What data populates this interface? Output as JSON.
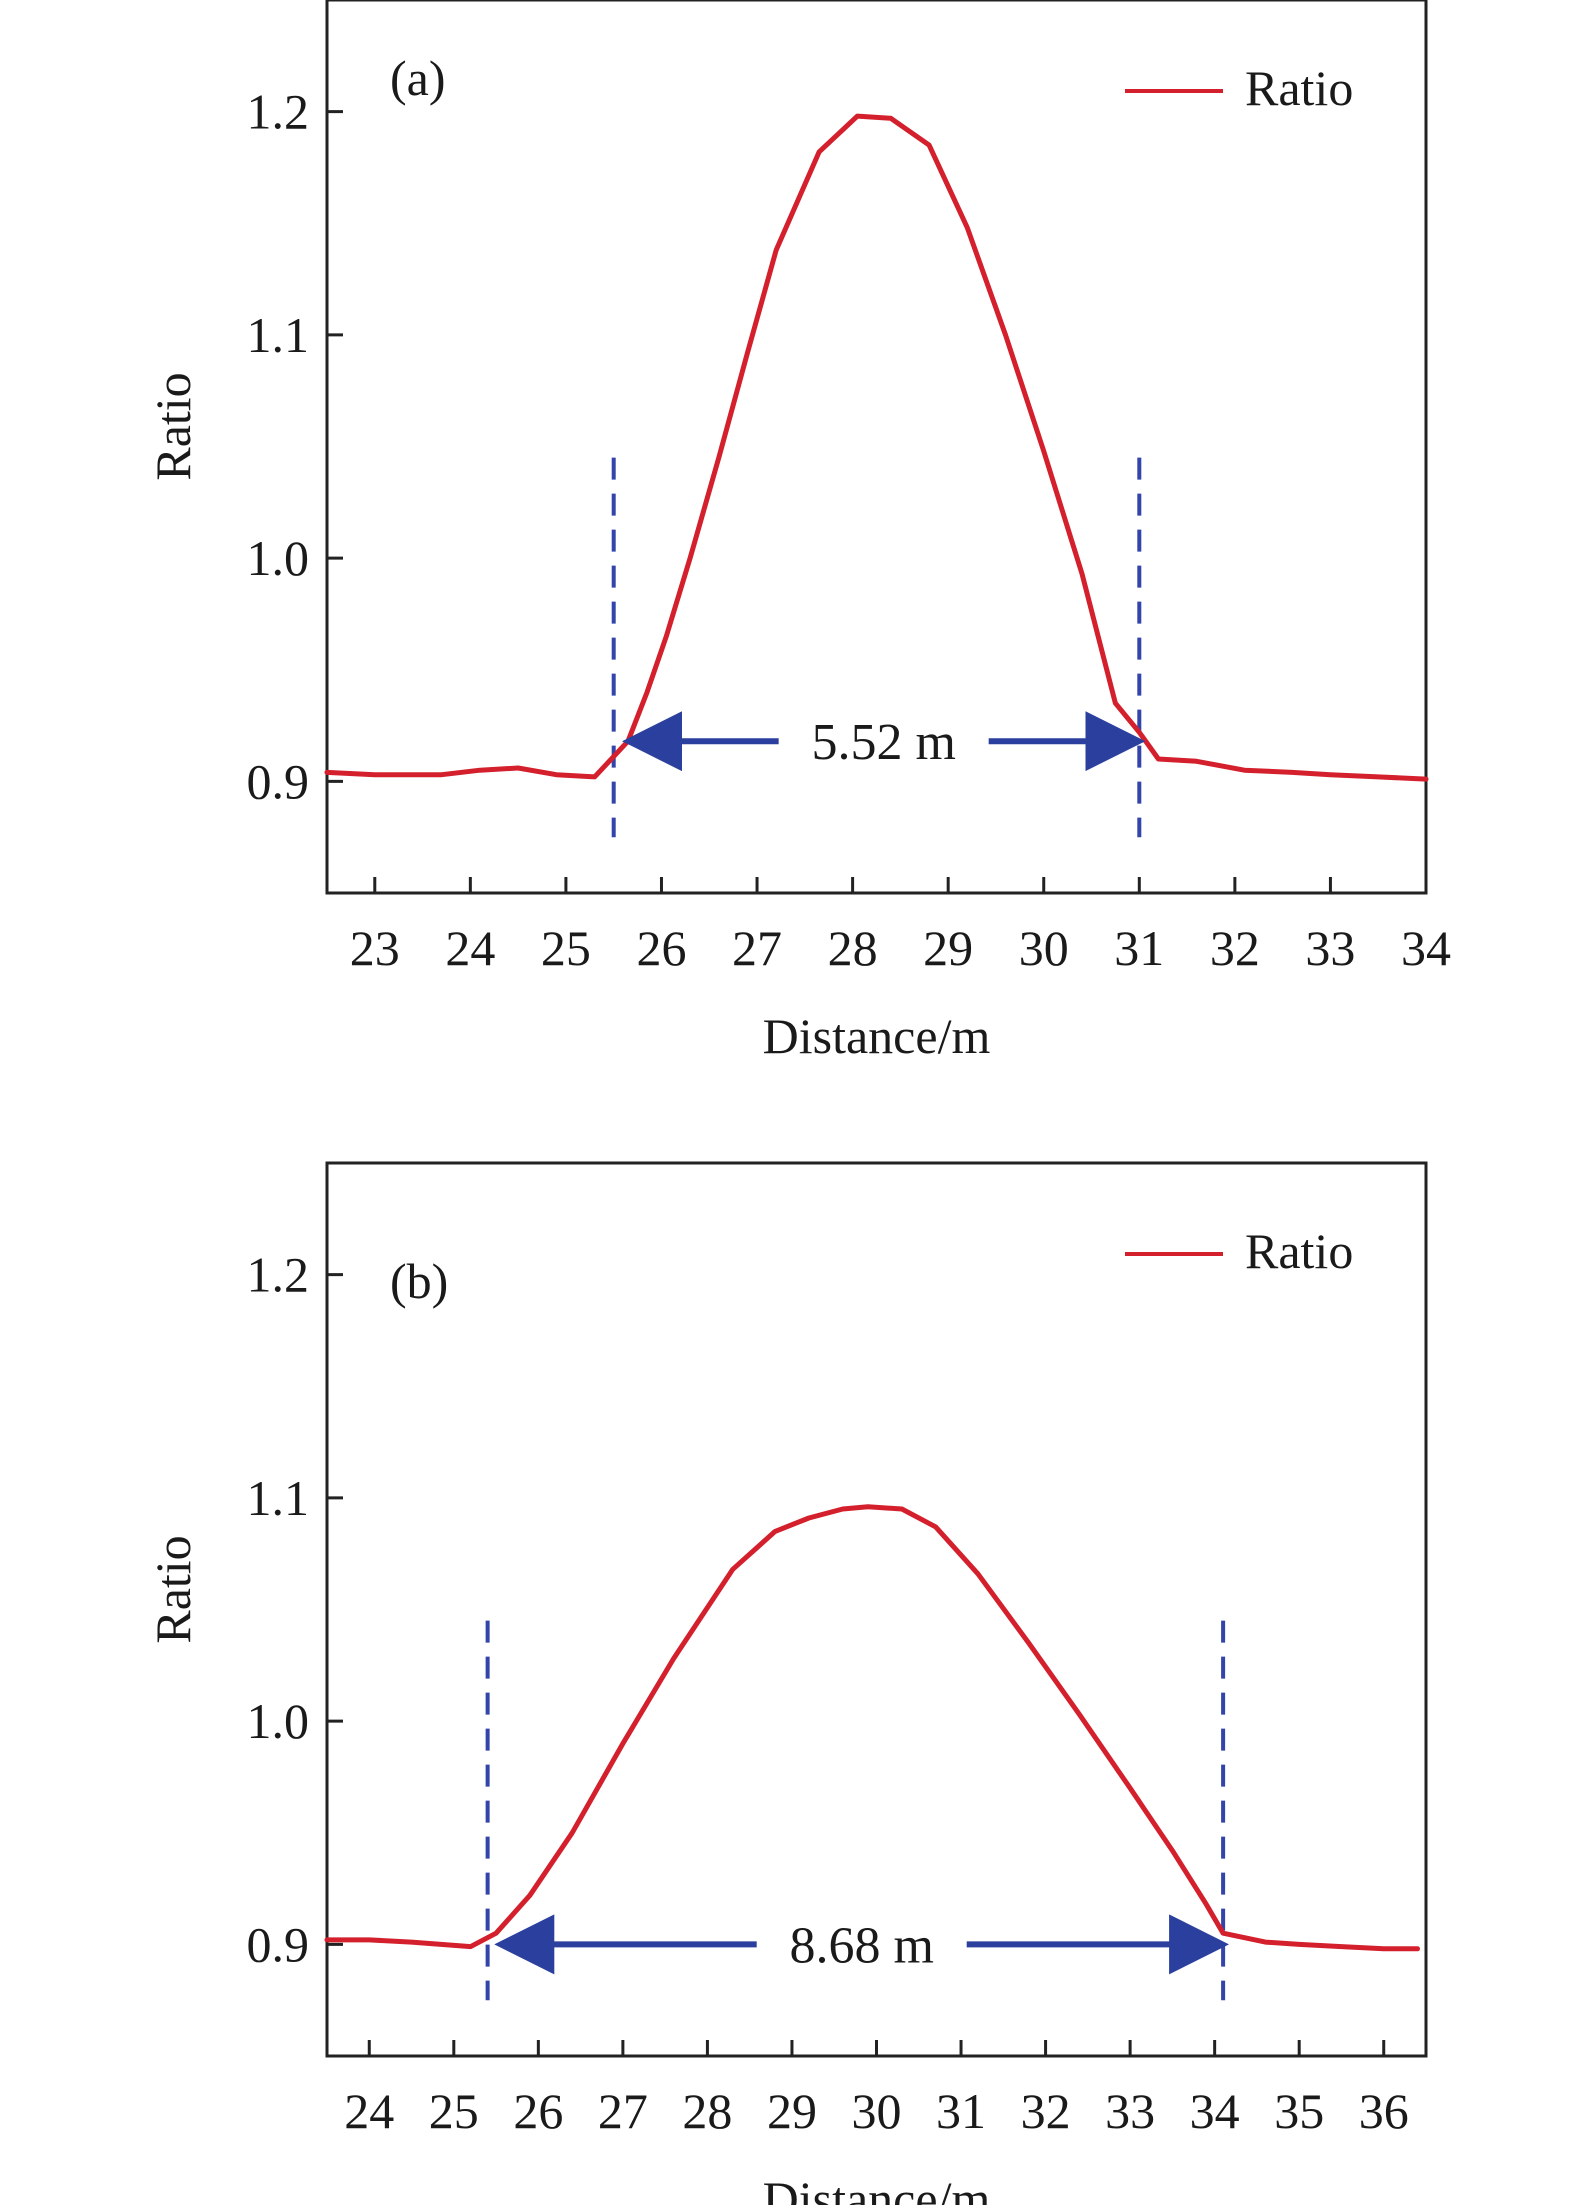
{
  "chart_data": [
    {
      "type": "line",
      "panel_label": "(a)",
      "xlabel": "Distance/m",
      "ylabel": "Ratio",
      "xlim": [
        22.5,
        34
      ],
      "ylim": [
        0.85,
        1.25
      ],
      "xticks": [
        23,
        24,
        25,
        26,
        27,
        28,
        29,
        30,
        31,
        32,
        33,
        34
      ],
      "yticks": [
        0.9,
        1.0,
        1.1,
        1.2
      ],
      "xtick_labels": [
        "23",
        "24",
        "25",
        "26",
        "27",
        "28",
        "29",
        "30",
        "31",
        "32",
        "33",
        "34"
      ],
      "ytick_labels": [
        "0.9",
        "1.0",
        "1.1",
        "1.2"
      ],
      "legend": {
        "label": "Ratio",
        "position": "top-right"
      },
      "series": [
        {
          "name": "Ratio",
          "color": "#d4202c",
          "x": [
            22.5,
            23.0,
            23.7,
            24.1,
            24.5,
            24.9,
            25.3,
            25.65,
            25.85,
            26.05,
            26.3,
            26.6,
            26.9,
            27.2,
            27.65,
            28.05,
            28.4,
            28.8,
            29.2,
            29.6,
            30.0,
            30.4,
            30.75,
            31.0,
            31.2,
            31.6,
            32.1,
            32.6,
            33.0,
            33.5,
            34.0
          ],
          "y": [
            0.904,
            0.903,
            0.903,
            0.905,
            0.906,
            0.903,
            0.902,
            0.918,
            0.94,
            0.965,
            1.0,
            1.045,
            1.092,
            1.138,
            1.182,
            1.198,
            1.197,
            1.185,
            1.148,
            1.1,
            1.048,
            0.993,
            0.935,
            0.922,
            0.91,
            0.909,
            0.905,
            0.904,
            0.903,
            0.902,
            0.901
          ]
        }
      ],
      "markers": {
        "x": [
          25.5,
          31.0
        ],
        "color": "#3344aa",
        "style": "dashed"
      },
      "annotation": {
        "text": "5.52 m",
        "from": 25.65,
        "to": 31.0,
        "y": 0.918,
        "color": "#2a3f9e"
      }
    },
    {
      "type": "line",
      "panel_label": "(b)",
      "xlabel": "Distance/m",
      "ylabel": "Ratio",
      "xlim": [
        23.5,
        36.5
      ],
      "ylim": [
        0.85,
        1.25
      ],
      "xticks": [
        24,
        25,
        26,
        27,
        28,
        29,
        30,
        31,
        32,
        33,
        34,
        35,
        36
      ],
      "yticks": [
        0.9,
        1.0,
        1.1,
        1.2
      ],
      "xtick_labels": [
        "24",
        "25",
        "26",
        "27",
        "28",
        "29",
        "30",
        "31",
        "32",
        "33",
        "34",
        "35",
        "36"
      ],
      "ytick_labels": [
        "0.9",
        "1.0",
        "1.1",
        "1.2"
      ],
      "legend": {
        "label": "Ratio",
        "position": "top-right"
      },
      "series": [
        {
          "name": "Ratio",
          "color": "#d4202c",
          "x": [
            23.5,
            24.0,
            24.5,
            25.2,
            25.5,
            25.9,
            26.4,
            27.0,
            27.6,
            28.3,
            28.8,
            29.2,
            29.6,
            29.9,
            30.3,
            30.7,
            31.2,
            31.8,
            32.4,
            33.0,
            33.5,
            33.9,
            34.1,
            34.6,
            35.0,
            35.5,
            36.0,
            36.4
          ],
          "y": [
            0.902,
            0.902,
            0.901,
            0.899,
            0.905,
            0.922,
            0.95,
            0.99,
            1.028,
            1.068,
            1.085,
            1.091,
            1.095,
            1.096,
            1.095,
            1.087,
            1.066,
            1.035,
            1.003,
            0.97,
            0.942,
            0.918,
            0.905,
            0.901,
            0.9,
            0.899,
            0.898,
            0.898
          ]
        }
      ],
      "markers": {
        "x": [
          25.4,
          34.1
        ],
        "color": "#3344aa",
        "style": "dashed"
      },
      "annotation": {
        "text": "8.68 m",
        "from": 25.55,
        "to": 34.1,
        "y": 0.9,
        "color": "#2a3f9e"
      }
    }
  ]
}
